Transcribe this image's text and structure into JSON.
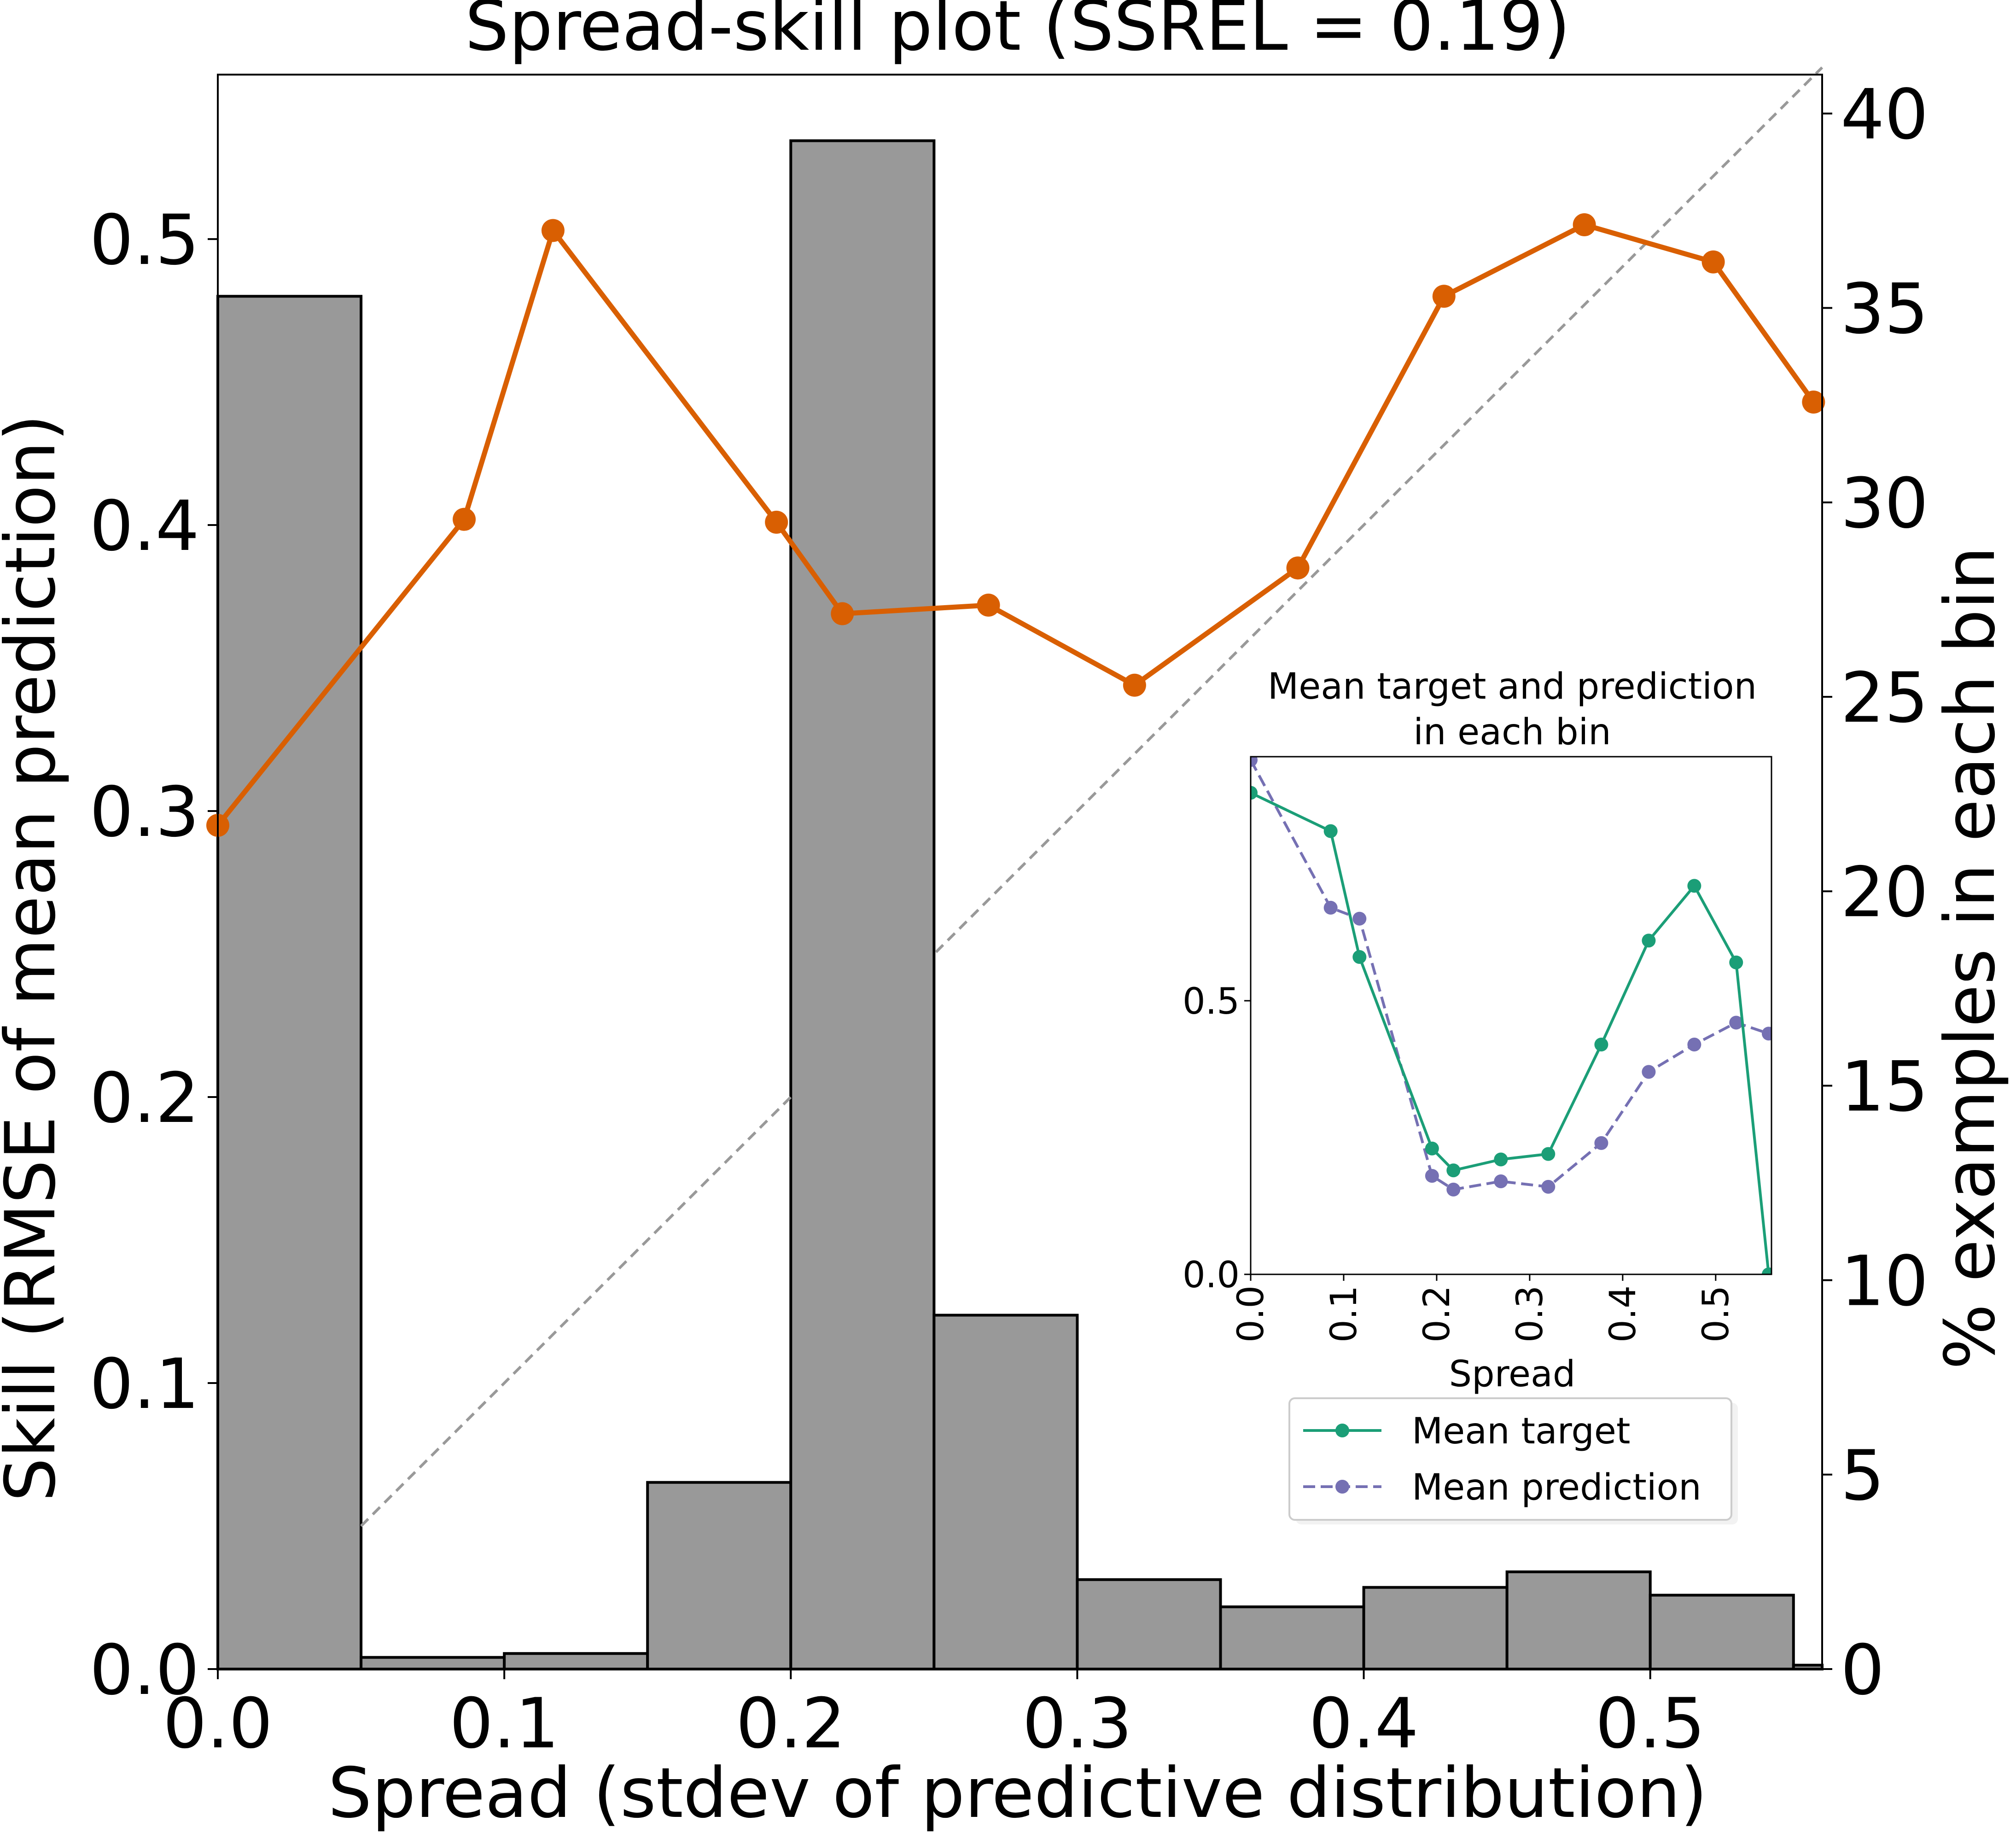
{
  "colors": {
    "histogram_fill": "#999999",
    "histogram_edge": "#000000",
    "skill_line": "#d95f02",
    "reference_line": "#999999",
    "mean_target": "#1b9e77",
    "mean_prediction": "#7570b3"
  },
  "chart_data": [
    {
      "type": "line",
      "title": "Spread-skill plot (SSREL = 0.19)",
      "xlabel": "Spread (stdev of predictive distribution)",
      "ylabel": "Skill (RMSE of mean prediction)",
      "y2label": "% examples in each bin",
      "xlim": [
        0,
        0.56
      ],
      "ylim": [
        0,
        0.5575
      ],
      "y2lim": [
        0,
        41.0
      ],
      "grid": false,
      "x_ticks": [
        "0.0",
        "0.1",
        "0.2",
        "0.3",
        "0.4",
        "0.5"
      ],
      "y_ticks": [
        "0.0",
        "0.1",
        "0.2",
        "0.3",
        "0.4",
        "0.5"
      ],
      "y2_ticks": [
        "0",
        "5",
        "10",
        "15",
        "20",
        "25",
        "30",
        "35",
        "40"
      ],
      "reference_line": {
        "style": "dashed",
        "from": [
          0.05,
          0.05
        ],
        "to": [
          0.56,
          0.56
        ]
      },
      "histogram": {
        "bin_width": 0.05,
        "bin_starts": [
          0.0,
          0.05,
          0.1,
          0.15,
          0.2,
          0.25,
          0.3,
          0.35,
          0.4,
          0.45,
          0.5,
          0.55
        ],
        "percent": [
          35.3,
          0.3,
          0.4,
          4.8,
          39.3,
          9.1,
          2.3,
          1.6,
          2.1,
          2.5,
          1.9,
          0.1
        ]
      },
      "series": [
        {
          "x": [
            0.0,
            0.086,
            0.117,
            0.195,
            0.218,
            0.269,
            0.32,
            0.377,
            0.428,
            0.477,
            0.522,
            0.557
          ],
          "values": [
            0.295,
            0.402,
            0.503,
            0.401,
            0.369,
            0.372,
            0.344,
            0.385,
            0.48,
            0.505,
            0.492,
            0.443
          ]
        }
      ]
    },
    {
      "type": "line",
      "title": "Mean target and prediction\nin each bin",
      "xlabel": "Spread",
      "ylabel": "",
      "xlim": [
        0,
        0.56
      ],
      "ylim": [
        0,
        0.946
      ],
      "grid": false,
      "legend_placement": "below",
      "x_ticks": [
        "0.0",
        "0.1",
        "0.2",
        "0.3",
        "0.4",
        "0.5"
      ],
      "y_ticks": [
        "0.0",
        "0.5"
      ],
      "series": [
        {
          "name": "Mean target",
          "style": "solid",
          "x": [
            0.0,
            0.086,
            0.117,
            0.195,
            0.218,
            0.269,
            0.32,
            0.377,
            0.428,
            0.477,
            0.522,
            0.557
          ],
          "values": [
            0.88,
            0.81,
            0.58,
            0.23,
            0.19,
            0.21,
            0.22,
            0.42,
            0.61,
            0.71,
            0.57,
            0.0
          ]
        },
        {
          "name": "Mean prediction",
          "style": "dashed",
          "x": [
            0.0,
            0.086,
            0.117,
            0.195,
            0.218,
            0.269,
            0.32,
            0.377,
            0.428,
            0.477,
            0.522,
            0.557
          ],
          "values": [
            0.94,
            0.67,
            0.65,
            0.18,
            0.155,
            0.17,
            0.16,
            0.24,
            0.37,
            0.42,
            0.46,
            0.44
          ]
        }
      ]
    }
  ]
}
